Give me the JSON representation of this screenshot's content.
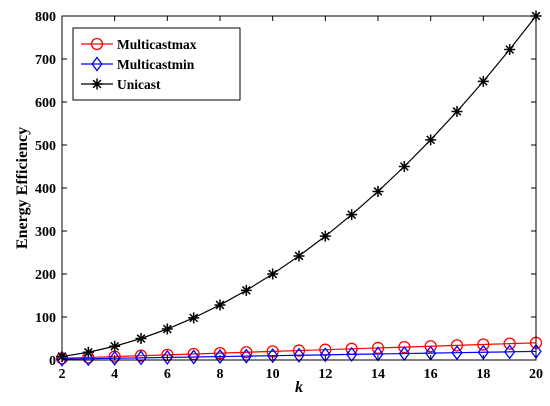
{
  "chart_data": {
    "type": "line",
    "title": "",
    "xlabel": "k",
    "ylabel": "Energy Efficiency",
    "xlim": [
      2,
      20
    ],
    "ylim": [
      0,
      800
    ],
    "xticks": [
      2,
      4,
      6,
      8,
      10,
      12,
      14,
      16,
      18,
      20
    ],
    "yticks": [
      0,
      100,
      200,
      300,
      400,
      500,
      600,
      700,
      800
    ],
    "grid": false,
    "legend_position": "top-left",
    "x": [
      2,
      3,
      4,
      5,
      6,
      7,
      8,
      9,
      10,
      11,
      12,
      13,
      14,
      15,
      16,
      17,
      18,
      19,
      20
    ],
    "series": [
      {
        "name": "Multicastmax",
        "color": "#ff0000",
        "marker": "circle",
        "values": [
          4,
          6,
          8,
          10,
          12,
          14,
          16,
          18,
          20,
          22,
          24,
          26,
          28,
          30,
          32,
          34,
          36,
          38,
          40
        ]
      },
      {
        "name": "Multicastmin",
        "color": "#0000ff",
        "marker": "diamond",
        "values": [
          2,
          3,
          4,
          5,
          6,
          7,
          8,
          9,
          10,
          11,
          12,
          13,
          14,
          15,
          16,
          17,
          18,
          19,
          20
        ]
      },
      {
        "name": "Unicast",
        "color": "#000000",
        "marker": "asterisk",
        "values": [
          8,
          18,
          32,
          50,
          72,
          98,
          128,
          162,
          200,
          242,
          288,
          338,
          392,
          450,
          512,
          578,
          648,
          722,
          800
        ]
      }
    ]
  }
}
